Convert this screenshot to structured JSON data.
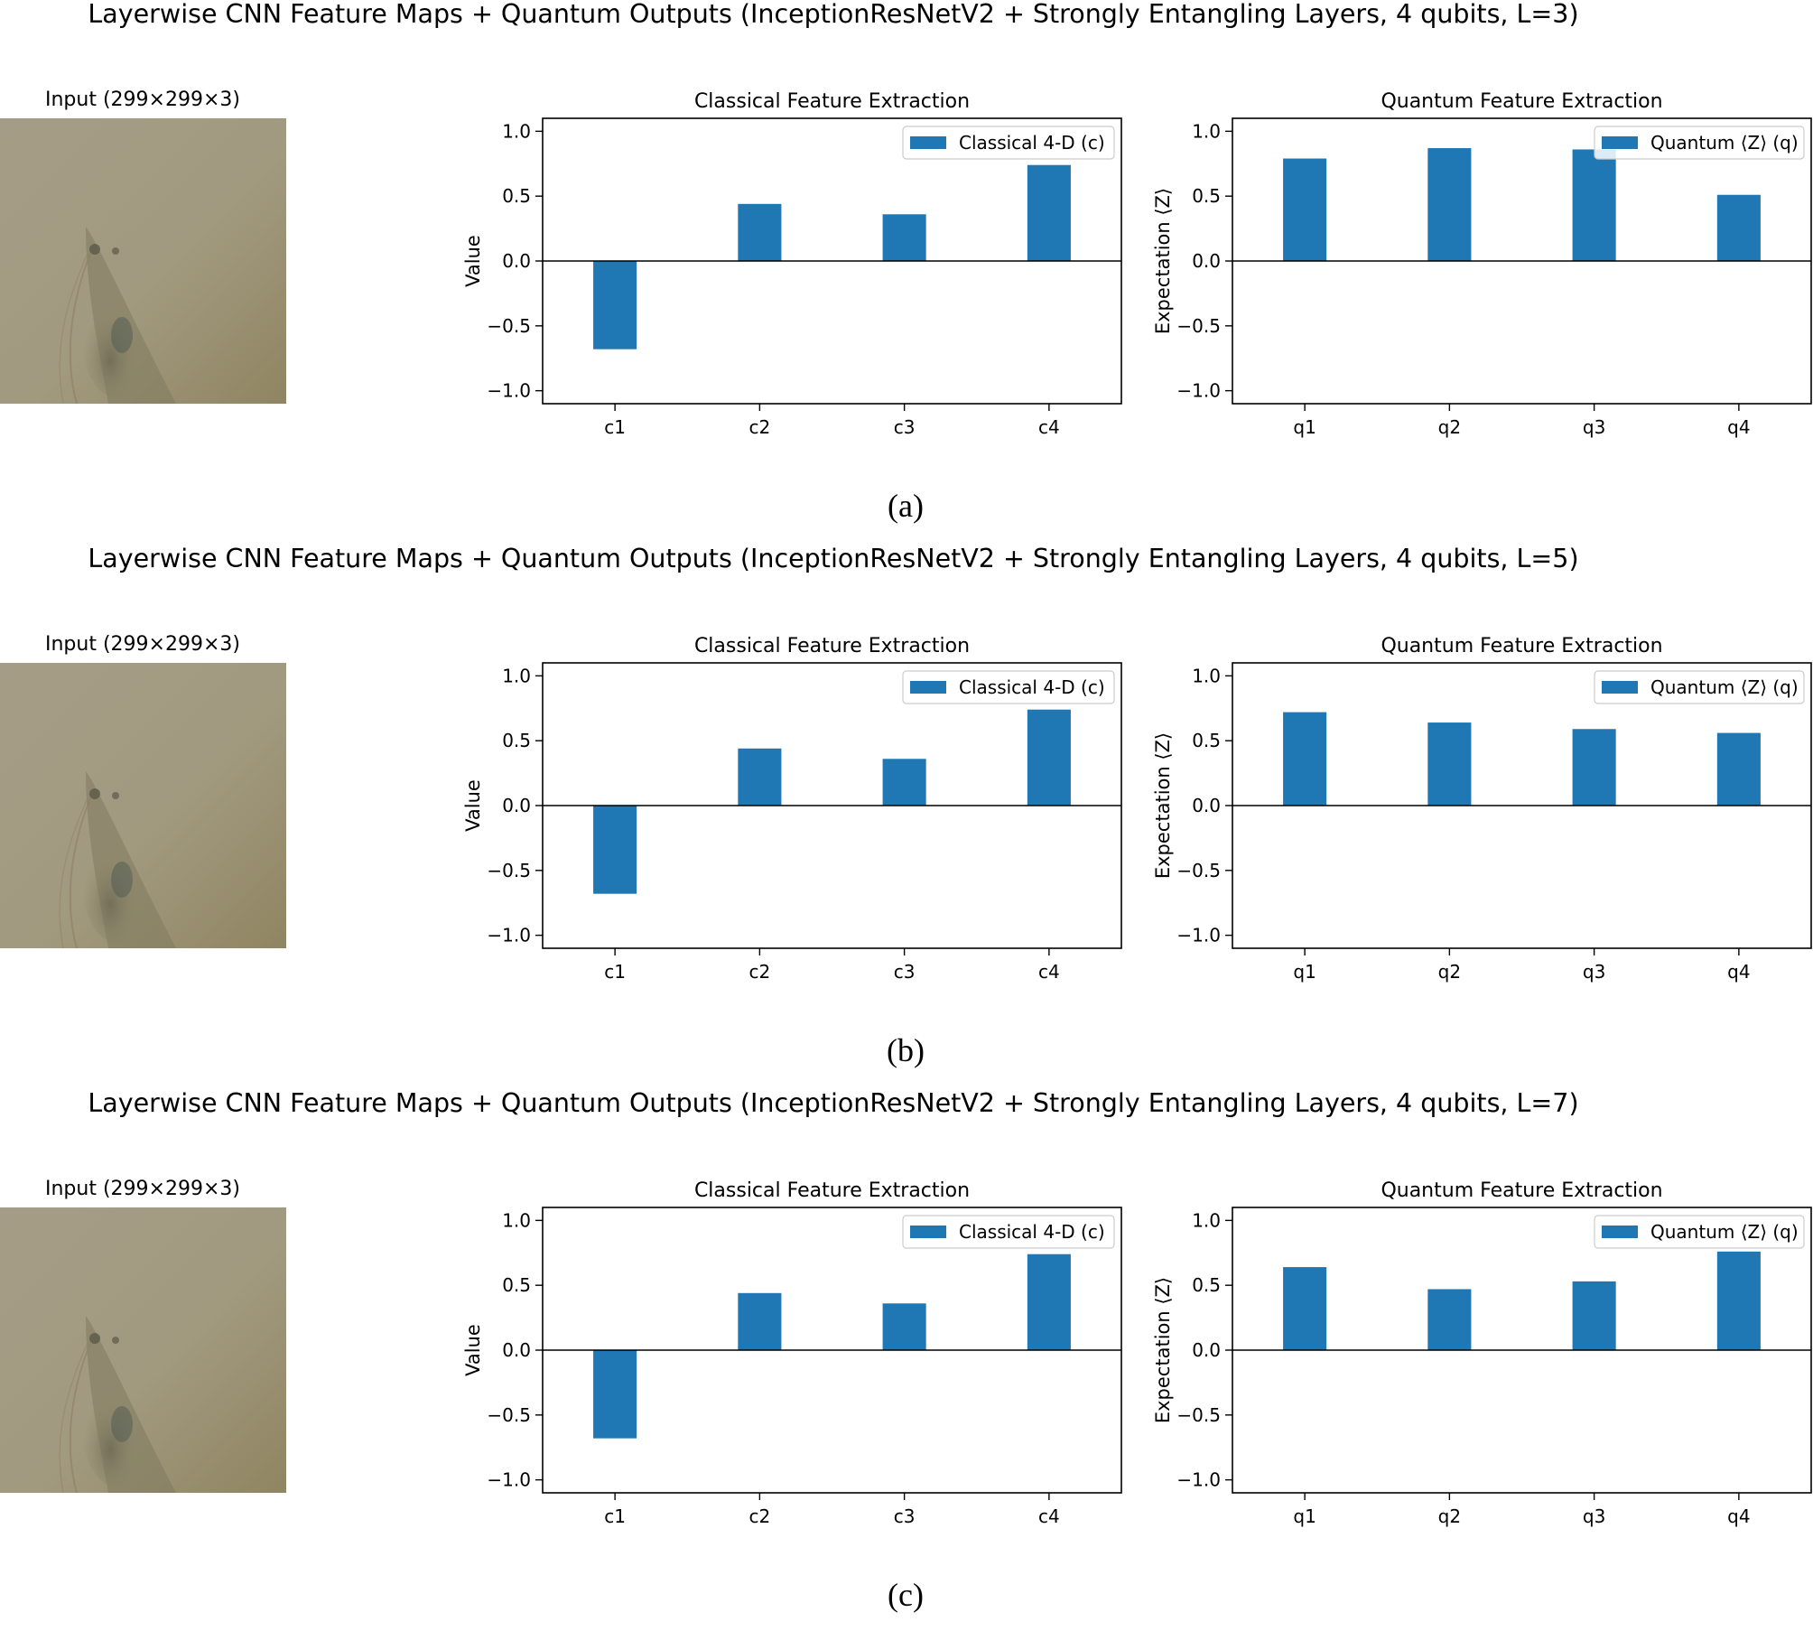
{
  "panels": [
    {
      "caption": "(a)",
      "suptitle": "Layerwise CNN Feature Maps + Quantum Outputs (InceptionResNetV2 + Strongly Entangling Layers, 4 qubits, L=3)",
      "input_title": "Input (299×299×3)"
    },
    {
      "caption": "(b)",
      "suptitle": "Layerwise CNN Feature Maps + Quantum Outputs (InceptionResNetV2 + Strongly Entangling Layers, 4 qubits, L=5)",
      "input_title": "Input (299×299×3)"
    },
    {
      "caption": "(c)",
      "suptitle": "Layerwise CNN Feature Maps + Quantum Outputs (InceptionResNetV2 + Strongly Entangling Layers, 4 qubits, L=7)",
      "input_title": "Input (299×299×3)"
    }
  ],
  "colors": {
    "bar": "#1f77b4",
    "axis": "#000000",
    "image_bg": "#a39a7d"
  },
  "chart_data": [
    {
      "type": "bar",
      "title": "Classical Feature Extraction",
      "xlabel": "",
      "ylabel": "Value",
      "categories": [
        "c1",
        "c2",
        "c3",
        "c4"
      ],
      "values": [
        -0.68,
        0.44,
        0.36,
        0.74
      ],
      "legend": "Classical 4-D (c)",
      "legend_loc": "upper right",
      "ylim": [
        -1.1,
        1.1
      ],
      "yticks": [
        1.0,
        0.5,
        0.0,
        -0.5,
        -1.0
      ],
      "ytick_labels": [
        "1.0",
        "0.5",
        "0.0",
        "−0.5",
        "−1.0"
      ],
      "grid": false
    },
    {
      "type": "bar",
      "title": "Quantum Feature Extraction",
      "xlabel": "",
      "ylabel": "Expectation ⟨Z⟩",
      "categories": [
        "q1",
        "q2",
        "q3",
        "q4"
      ],
      "values": [
        0.79,
        0.87,
        0.86,
        0.51
      ],
      "legend": "Quantum ⟨Z⟩ (q)",
      "legend_loc": "upper right",
      "ylim": [
        -1.1,
        1.1
      ],
      "yticks": [
        1.0,
        0.5,
        0.0,
        -0.5,
        -1.0
      ],
      "ytick_labels": [
        "1.0",
        "0.5",
        "0.0",
        "−0.5",
        "−1.0"
      ],
      "grid": false
    },
    {
      "type": "bar",
      "title": "Classical Feature Extraction",
      "xlabel": "",
      "ylabel": "Value",
      "categories": [
        "c1",
        "c2",
        "c3",
        "c4"
      ],
      "values": [
        -0.68,
        0.44,
        0.36,
        0.74
      ],
      "legend": "Classical 4-D (c)",
      "legend_loc": "upper right",
      "ylim": [
        -1.1,
        1.1
      ],
      "yticks": [
        1.0,
        0.5,
        0.0,
        -0.5,
        -1.0
      ],
      "ytick_labels": [
        "1.0",
        "0.5",
        "0.0",
        "−0.5",
        "−1.0"
      ],
      "grid": false
    },
    {
      "type": "bar",
      "title": "Quantum Feature Extraction",
      "xlabel": "",
      "ylabel": "Expectation ⟨Z⟩",
      "categories": [
        "q1",
        "q2",
        "q3",
        "q4"
      ],
      "values": [
        0.72,
        0.64,
        0.59,
        0.56
      ],
      "legend": "Quantum ⟨Z⟩ (q)",
      "legend_loc": "upper right",
      "ylim": [
        -1.1,
        1.1
      ],
      "yticks": [
        1.0,
        0.5,
        0.0,
        -0.5,
        -1.0
      ],
      "ytick_labels": [
        "1.0",
        "0.5",
        "0.0",
        "−0.5",
        "−1.0"
      ],
      "grid": false
    },
    {
      "type": "bar",
      "title": "Classical Feature Extraction",
      "xlabel": "",
      "ylabel": "Value",
      "categories": [
        "c1",
        "c2",
        "c3",
        "c4"
      ],
      "values": [
        -0.68,
        0.44,
        0.36,
        0.74
      ],
      "legend": "Classical 4-D (c)",
      "legend_loc": "upper right",
      "ylim": [
        -1.1,
        1.1
      ],
      "yticks": [
        1.0,
        0.5,
        0.0,
        -0.5,
        -1.0
      ],
      "ytick_labels": [
        "1.0",
        "0.5",
        "0.0",
        "−0.5",
        "−1.0"
      ],
      "grid": false
    },
    {
      "type": "bar",
      "title": "Quantum Feature Extraction",
      "xlabel": "",
      "ylabel": "Expectation ⟨Z⟩",
      "categories": [
        "q1",
        "q2",
        "q3",
        "q4"
      ],
      "values": [
        0.64,
        0.47,
        0.53,
        0.76
      ],
      "legend": "Quantum ⟨Z⟩ (q)",
      "legend_loc": "upper right",
      "ylim": [
        -1.1,
        1.1
      ],
      "yticks": [
        1.0,
        0.5,
        0.0,
        -0.5,
        -1.0
      ],
      "ytick_labels": [
        "1.0",
        "0.5",
        "0.0",
        "−0.5",
        "−1.0"
      ],
      "grid": false
    }
  ]
}
